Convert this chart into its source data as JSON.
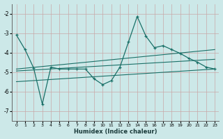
{
  "xlabel": "Humidex (Indice chaleur)",
  "background_color": "#cce8e8",
  "grid_color": "#b8d8d8",
  "line_color": "#1a7068",
  "xlim": [
    -0.5,
    23.5
  ],
  "ylim": [
    -7.5,
    -1.5
  ],
  "yticks": [
    -7,
    -6,
    -5,
    -4,
    -3,
    -2
  ],
  "xticks": [
    0,
    1,
    2,
    3,
    4,
    5,
    6,
    7,
    8,
    9,
    10,
    11,
    12,
    13,
    14,
    15,
    16,
    17,
    18,
    19,
    20,
    21,
    22,
    23
  ],
  "main_x": [
    0,
    1,
    2,
    3,
    4,
    5,
    6,
    7,
    8,
    9,
    10,
    11,
    12,
    13,
    14,
    15,
    16,
    17,
    18,
    19,
    20,
    21,
    22,
    23
  ],
  "main_y": [
    -3.1,
    -3.85,
    -4.8,
    -6.65,
    -4.75,
    -4.85,
    -4.85,
    -4.85,
    -4.85,
    -5.35,
    -5.65,
    -5.45,
    -4.75,
    -3.45,
    -2.15,
    -3.15,
    -3.75,
    -3.65,
    -3.85,
    -4.05,
    -4.3,
    -4.5,
    -4.75,
    -4.85
  ],
  "trend1_x": [
    0,
    23
  ],
  "trend1_y": [
    -4.85,
    -3.85
  ],
  "trend2_x": [
    0,
    23
  ],
  "trend2_y": [
    -4.95,
    -4.35
  ],
  "trend3_x": [
    0,
    23
  ],
  "trend3_y": [
    -5.5,
    -4.85
  ]
}
